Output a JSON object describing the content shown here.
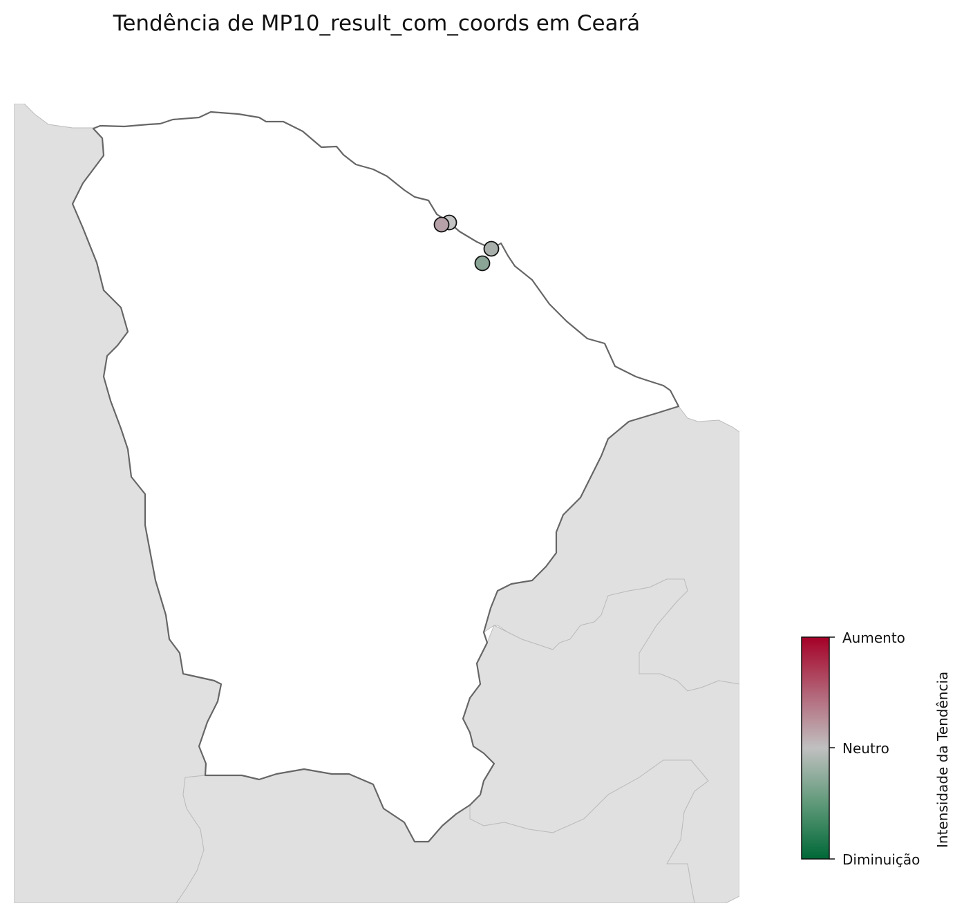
{
  "title": "Tendência de MP10_result_com_coords em Ceará",
  "colors": {
    "background": "#ffffff",
    "neighbor_fill": "#e0e0e0",
    "neighbor_border": "#bbbbbb",
    "state_fill": "#ffffff",
    "state_border": "#666666",
    "increase": "#a50026",
    "neutral": "#c0c0c0",
    "decrease": "#006837"
  },
  "colorbar": {
    "label": "Intensidade da Tendência",
    "ticks": [
      "Aumento",
      "Neutro",
      "Diminuição"
    ]
  },
  "points": [
    {
      "trend": 0.25,
      "color": "#c4c4c4"
    },
    {
      "trend": 0.35,
      "color": "#b5a1a7"
    },
    {
      "trend": -0.1,
      "color": "#a9b0ab"
    },
    {
      "trend": -0.45,
      "color": "#8aa596"
    }
  ]
}
